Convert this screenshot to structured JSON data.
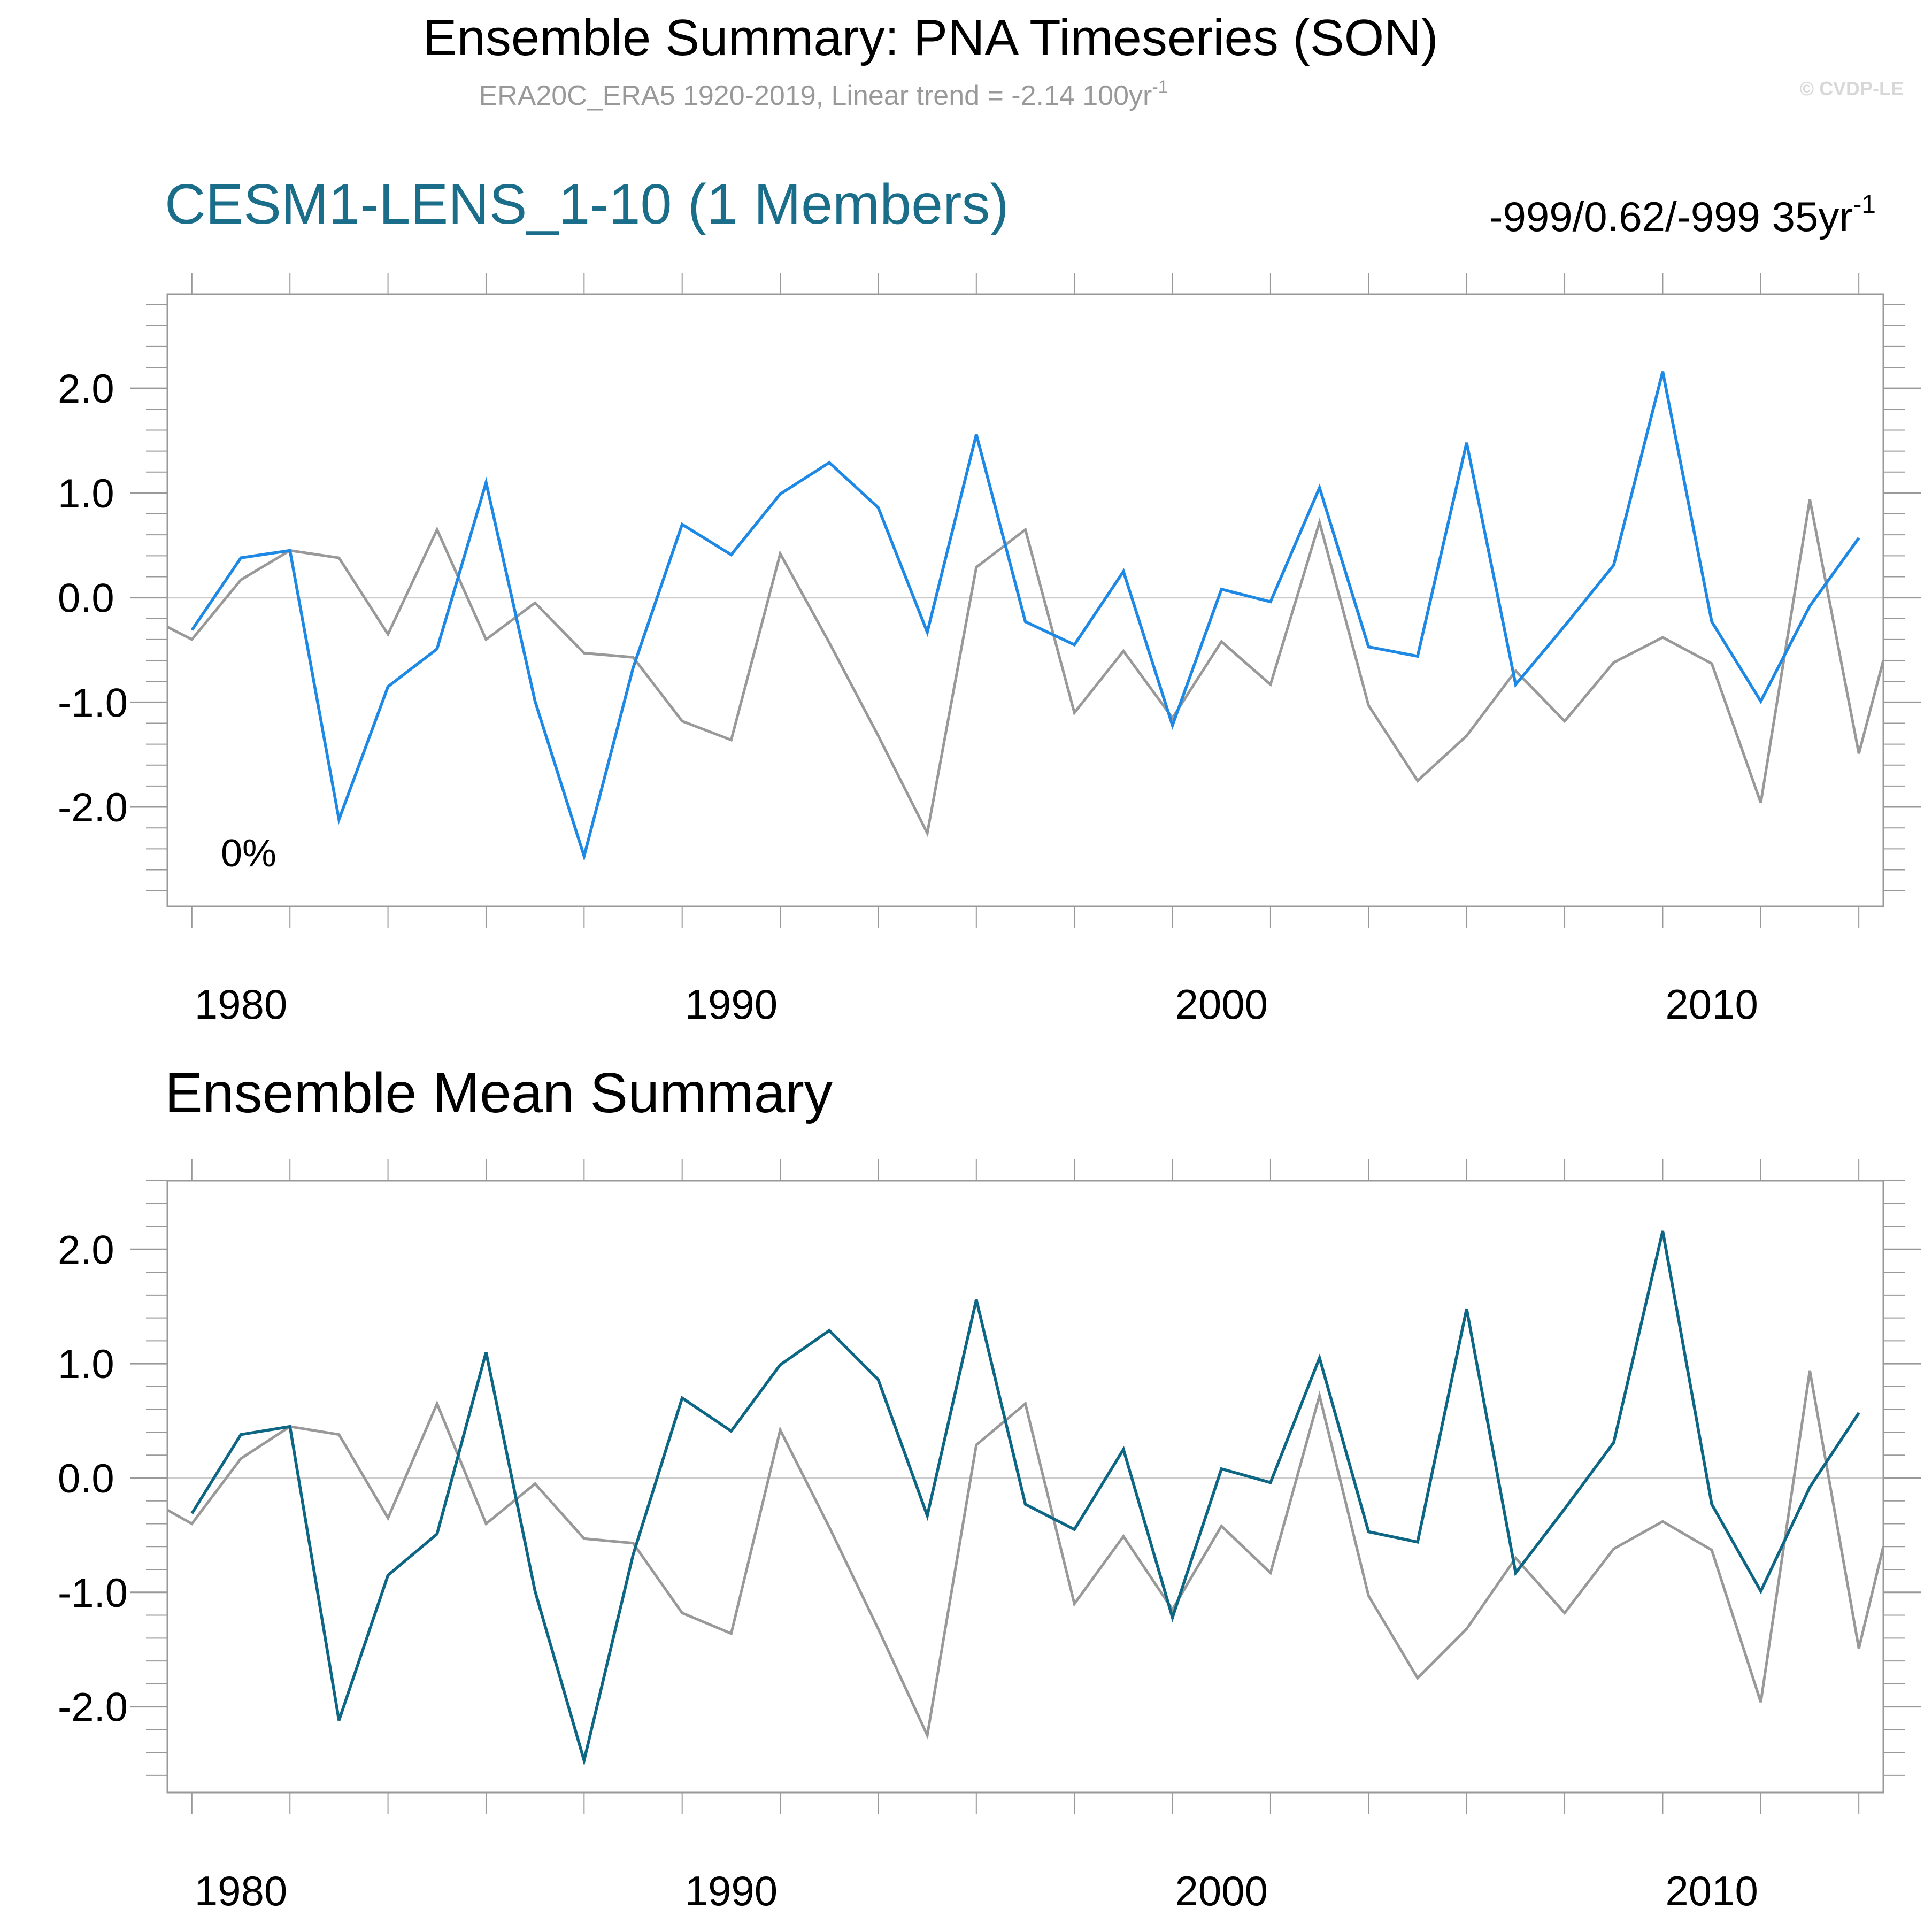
{
  "header": {
    "title": "Ensemble Summary: PNA Timeseries (SON)",
    "subtitle_main": "ERA20C_ERA5 1920-2019, Linear trend = -2.14 100yr",
    "subtitle_sup": "-1",
    "watermark": "© CVDP-LE"
  },
  "colors": {
    "observed": "#999999",
    "member_line": "#1e88e5",
    "ensemble_mean_line": "#0d6683",
    "panel1_title": "#1a6e8a",
    "frame": "#999999",
    "zero_line": "#cccccc"
  },
  "chart_data": [
    {
      "type": "line",
      "title": "CESM1-LENS_1-10 (1 Members)",
      "right_label_main": "-999/0.62/-999 35yr",
      "right_label_sup": "-1",
      "annotation": "0%",
      "xlim": [
        1978.5,
        2013.5
      ],
      "ylim": [
        -2.95,
        2.9
      ],
      "x_ticks": [
        1980,
        1990,
        2000,
        2010
      ],
      "x_tick_labels": [
        "1980",
        "1990",
        "2000",
        "2010"
      ],
      "y_ticks": [
        -2.0,
        -1.0,
        0.0,
        1.0,
        2.0
      ],
      "y_tick_labels": [
        "-2.0",
        "-1.0",
        "0.0",
        "1.0",
        "2.0"
      ],
      "zero_line": true,
      "series": [
        {
          "role": "observed",
          "x": [
            1978.5,
            1979,
            1980,
            1981,
            1982,
            1983,
            1984,
            1985,
            1986,
            1987,
            1988,
            1989,
            1990,
            1991,
            1992,
            1993,
            1994,
            1995,
            1996,
            1997,
            1998,
            1999,
            2000,
            2001,
            2002,
            2003,
            2004,
            2005,
            2006,
            2007,
            2008,
            2009,
            2010,
            2011,
            2012,
            2013,
            2013.5
          ],
          "values": [
            -0.28,
            -0.4,
            0.17,
            0.45,
            0.38,
            -0.35,
            0.65,
            -0.4,
            -0.05,
            -0.53,
            -0.57,
            -1.18,
            -1.36,
            0.42,
            -0.43,
            -1.32,
            -2.25,
            0.29,
            0.65,
            -1.1,
            -0.51,
            -1.15,
            -0.42,
            -0.83,
            0.72,
            -1.03,
            -1.75,
            -1.32,
            -0.7,
            -1.18,
            -0.62,
            -0.38,
            -0.63,
            -1.96,
            0.94,
            -1.49,
            -0.6
          ]
        },
        {
          "role": "member",
          "x": [
            1979,
            1980,
            1981,
            1982,
            1983,
            1984,
            1985,
            1986,
            1987,
            1988,
            1989,
            1990,
            1991,
            1992,
            1993,
            1994,
            1995,
            1996,
            1997,
            1998,
            1999,
            2000,
            2001,
            2002,
            2003,
            2004,
            2005,
            2006,
            2007,
            2008,
            2009,
            2010,
            2011,
            2012,
            2013
          ],
          "values": [
            -0.31,
            0.38,
            0.45,
            -2.12,
            -0.85,
            -0.49,
            1.1,
            -0.99,
            -2.47,
            -0.67,
            0.7,
            0.41,
            0.99,
            1.29,
            0.86,
            -0.33,
            1.56,
            -0.23,
            -0.45,
            0.25,
            -1.22,
            0.08,
            -0.04,
            1.05,
            -0.47,
            -0.56,
            1.48,
            -0.83,
            -0.27,
            0.31,
            2.16,
            -0.23,
            -0.99,
            -0.08,
            0.57
          ]
        }
      ]
    },
    {
      "type": "line",
      "title": "Ensemble Mean Summary",
      "xlim": [
        1978.5,
        2013.5
      ],
      "ylim": [
        -2.75,
        2.6
      ],
      "x_ticks": [
        1980,
        1990,
        2000,
        2010
      ],
      "x_tick_labels": [
        "1980",
        "1990",
        "2000",
        "2010"
      ],
      "y_ticks": [
        -2.0,
        -1.0,
        0.0,
        1.0,
        2.0
      ],
      "y_tick_labels": [
        "-2.0",
        "-1.0",
        "0.0",
        "1.0",
        "2.0"
      ],
      "zero_line": true,
      "series": [
        {
          "role": "observed",
          "x": [
            1978.5,
            1979,
            1980,
            1981,
            1982,
            1983,
            1984,
            1985,
            1986,
            1987,
            1988,
            1989,
            1990,
            1991,
            1992,
            1993,
            1994,
            1995,
            1996,
            1997,
            1998,
            1999,
            2000,
            2001,
            2002,
            2003,
            2004,
            2005,
            2006,
            2007,
            2008,
            2009,
            2010,
            2011,
            2012,
            2013,
            2013.5
          ],
          "values": [
            -0.28,
            -0.4,
            0.17,
            0.45,
            0.38,
            -0.35,
            0.65,
            -0.4,
            -0.05,
            -0.53,
            -0.57,
            -1.18,
            -1.36,
            0.42,
            -0.43,
            -1.32,
            -2.25,
            0.29,
            0.65,
            -1.1,
            -0.51,
            -1.15,
            -0.42,
            -0.83,
            0.72,
            -1.03,
            -1.75,
            -1.32,
            -0.7,
            -1.18,
            -0.62,
            -0.38,
            -0.63,
            -1.96,
            0.94,
            -1.49,
            -0.6
          ]
        },
        {
          "role": "ensemble_mean",
          "x": [
            1979,
            1980,
            1981,
            1982,
            1983,
            1984,
            1985,
            1986,
            1987,
            1988,
            1989,
            1990,
            1991,
            1992,
            1993,
            1994,
            1995,
            1996,
            1997,
            1998,
            1999,
            2000,
            2001,
            2002,
            2003,
            2004,
            2005,
            2006,
            2007,
            2008,
            2009,
            2010,
            2011,
            2012,
            2013
          ],
          "values": [
            -0.31,
            0.38,
            0.45,
            -2.12,
            -0.85,
            -0.49,
            1.1,
            -0.99,
            -2.47,
            -0.67,
            0.7,
            0.41,
            0.99,
            1.29,
            0.86,
            -0.33,
            1.56,
            -0.23,
            -0.45,
            0.25,
            -1.22,
            0.08,
            -0.04,
            1.05,
            -0.47,
            -0.56,
            1.48,
            -0.83,
            -0.27,
            0.31,
            2.16,
            -0.23,
            -0.99,
            -0.08,
            0.57
          ]
        }
      ]
    }
  ]
}
